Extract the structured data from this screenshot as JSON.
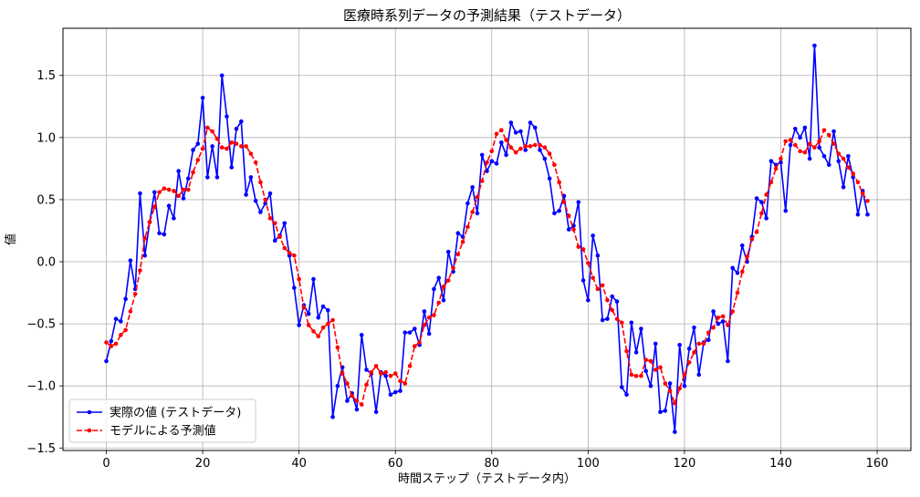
{
  "chart_data": {
    "type": "line",
    "title": "医療時系列データの予測結果（テストデータ）",
    "xlabel": "時間ステップ（テストデータ内）",
    "ylabel": "値",
    "xlim": [
      -9,
      167
    ],
    "ylim": [
      -1.52,
      1.88
    ],
    "xticks": [
      0,
      20,
      40,
      60,
      80,
      100,
      120,
      140,
      160
    ],
    "yticks": [
      -1.5,
      -1.0,
      -0.5,
      0.0,
      0.5,
      1.0,
      1.5
    ],
    "ytick_labels": [
      "−1.5",
      "−1.0",
      "−0.5",
      "0.0",
      "0.5",
      "1.0",
      "1.5"
    ],
    "grid": true,
    "legend_position": "lower-left",
    "series": [
      {
        "name": "実際の値 (テストデータ)",
        "color": "#0000ff",
        "style": "solid-with-markers",
        "x_start": 0,
        "values": [
          -0.8,
          -0.64,
          -0.46,
          -0.48,
          -0.3,
          0.01,
          -0.22,
          0.55,
          0.05,
          0.32,
          0.56,
          0.23,
          0.22,
          0.45,
          0.35,
          0.73,
          0.51,
          0.67,
          0.9,
          0.95,
          1.32,
          0.68,
          0.93,
          0.68,
          1.5,
          1.17,
          0.76,
          1.07,
          1.13,
          0.54,
          0.68,
          0.49,
          0.4,
          0.47,
          0.55,
          0.17,
          0.21,
          0.31,
          0.05,
          -0.21,
          -0.51,
          -0.35,
          -0.42,
          -0.14,
          -0.45,
          -0.36,
          -0.39,
          -1.25,
          -1.0,
          -0.85,
          -1.12,
          -1.06,
          -1.19,
          -0.59,
          -0.87,
          -0.9,
          -1.21,
          -0.89,
          -0.92,
          -1.07,
          -1.05,
          -1.04,
          -0.57,
          -0.57,
          -0.54,
          -0.67,
          -0.4,
          -0.58,
          -0.22,
          -0.13,
          -0.31,
          0.08,
          -0.08,
          0.23,
          0.2,
          0.47,
          0.6,
          0.39,
          0.86,
          0.73,
          0.81,
          0.79,
          0.96,
          0.86,
          1.12,
          1.04,
          1.05,
          0.9,
          1.12,
          1.08,
          0.9,
          0.83,
          0.67,
          0.39,
          0.41,
          0.53,
          0.26,
          0.29,
          0.48,
          -0.15,
          -0.31,
          0.21,
          0.05,
          -0.47,
          -0.46,
          -0.28,
          -0.32,
          -1.01,
          -1.07,
          -0.49,
          -0.73,
          -0.54,
          -0.88,
          -1.0,
          -0.66,
          -1.21,
          -1.2,
          -0.98,
          -1.37,
          -0.67,
          -1.0,
          -0.7,
          -0.53,
          -0.91,
          -0.65,
          -0.63,
          -0.4,
          -0.5,
          -0.48,
          -0.8,
          -0.05,
          -0.09,
          0.13,
          0.0,
          0.2,
          0.51,
          0.48,
          0.35,
          0.81,
          0.78,
          0.8,
          0.41,
          0.94,
          1.07,
          1.0,
          1.08,
          0.83,
          1.74,
          0.92,
          0.85,
          0.78,
          1.05,
          0.81,
          0.6,
          0.85,
          0.68,
          0.38,
          0.57,
          0.38
        ]
      },
      {
        "name": "モデルによる予測値",
        "color": "#ff0000",
        "style": "dashed-with-markers",
        "x_start": 0,
        "values": [
          -0.65,
          -0.68,
          -0.66,
          -0.59,
          -0.55,
          -0.4,
          -0.26,
          -0.07,
          0.19,
          0.32,
          0.44,
          0.56,
          0.59,
          0.58,
          0.57,
          0.53,
          0.58,
          0.58,
          0.72,
          0.82,
          0.91,
          1.08,
          1.05,
          0.99,
          0.92,
          0.91,
          0.96,
          0.95,
          0.93,
          0.93,
          0.87,
          0.8,
          0.64,
          0.5,
          0.35,
          0.31,
          0.2,
          0.11,
          0.07,
          0.05,
          -0.14,
          -0.37,
          -0.51,
          -0.56,
          -0.6,
          -0.53,
          -0.5,
          -0.47,
          -0.69,
          -0.9,
          -0.98,
          -1.08,
          -1.12,
          -1.15,
          -0.99,
          -0.89,
          -0.84,
          -0.9,
          -0.89,
          -0.92,
          -0.9,
          -0.96,
          -0.98,
          -0.84,
          -0.68,
          -0.65,
          -0.51,
          -0.45,
          -0.43,
          -0.33,
          -0.2,
          -0.15,
          -0.05,
          0.06,
          0.16,
          0.28,
          0.4,
          0.52,
          0.65,
          0.8,
          0.89,
          1.03,
          1.06,
          0.98,
          0.92,
          0.88,
          0.91,
          0.93,
          0.93,
          0.94,
          0.94,
          0.92,
          0.87,
          0.78,
          0.64,
          0.48,
          0.37,
          0.26,
          0.12,
          0.1,
          -0.01,
          -0.13,
          -0.22,
          -0.19,
          -0.31,
          -0.39,
          -0.46,
          -0.49,
          -0.72,
          -0.91,
          -0.92,
          -0.92,
          -0.79,
          -0.8,
          -0.87,
          -0.85,
          -0.98,
          -1.04,
          -1.14,
          -1.02,
          -0.91,
          -0.81,
          -0.73,
          -0.66,
          -0.66,
          -0.57,
          -0.53,
          -0.45,
          -0.44,
          -0.51,
          -0.4,
          -0.25,
          -0.08,
          0.04,
          0.18,
          0.24,
          0.39,
          0.54,
          0.64,
          0.75,
          0.83,
          0.97,
          0.98,
          0.94,
          0.89,
          0.88,
          0.95,
          0.92,
          0.97,
          1.06,
          1.02,
          0.95,
          0.87,
          0.83,
          0.76,
          0.71,
          0.64,
          0.55,
          0.49
        ]
      }
    ]
  }
}
